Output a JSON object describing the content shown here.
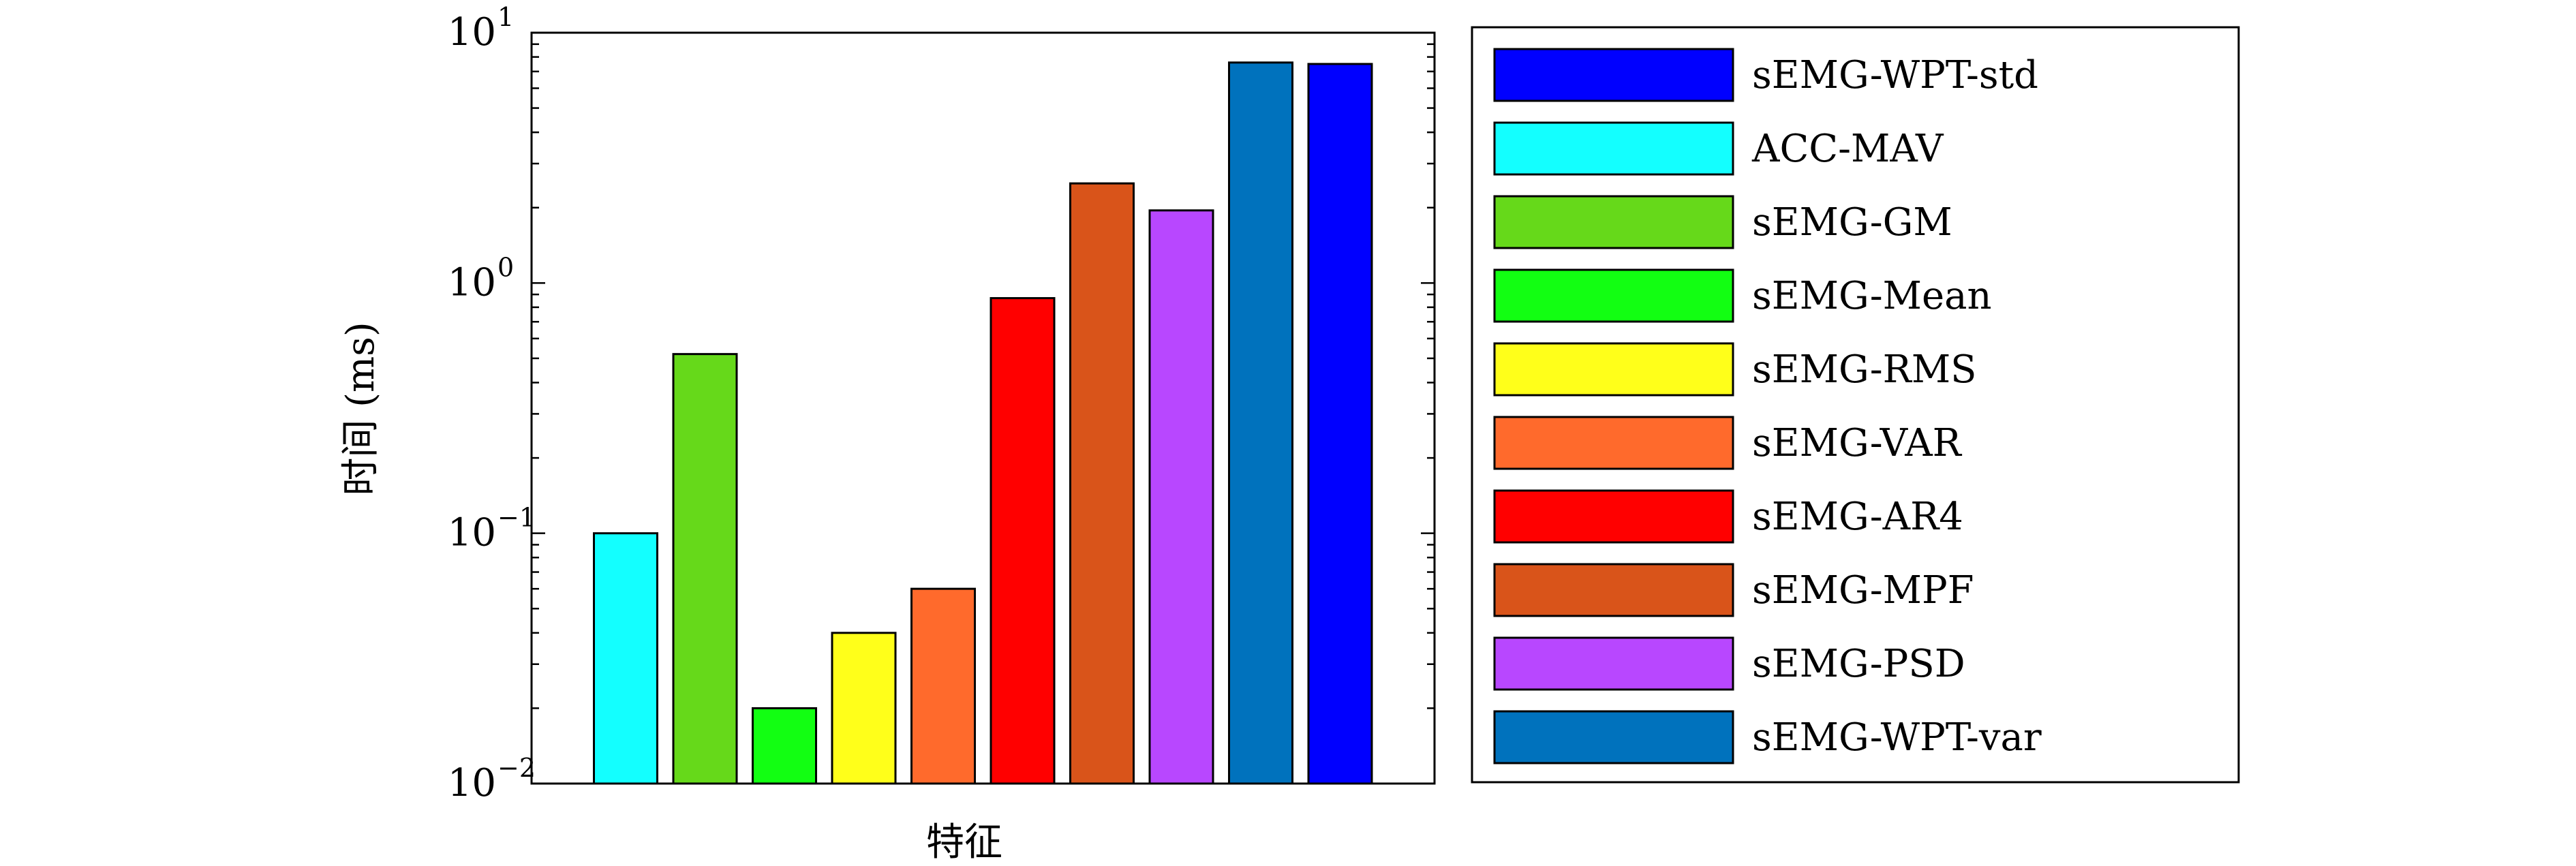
{
  "chart_data": {
    "type": "bar",
    "xlabel": "特征",
    "ylabel": "时间 (ms)",
    "yscale": "log",
    "ylim": [
      0.01,
      10
    ],
    "yticks": [
      {
        "base": "10",
        "exp": "1",
        "value": 10
      },
      {
        "base": "10",
        "exp": "0",
        "value": 1
      },
      {
        "base": "10",
        "exp": "−1",
        "value": 0.1
      },
      {
        "base": "10",
        "exp": "−2",
        "value": 0.01
      }
    ],
    "legend_position": "right, outside plot",
    "bars": [
      {
        "name": "ACC-MAV",
        "value": 0.1,
        "color": "#13FFFF"
      },
      {
        "name": "sEMG-GM",
        "value": 0.52,
        "color": "#66D91A"
      },
      {
        "name": "sEMG-Mean",
        "value": 0.02,
        "color": "#12FF12"
      },
      {
        "name": "sEMG-RMS",
        "value": 0.04,
        "color": "#FFFF1A"
      },
      {
        "name": "sEMG-VAR",
        "value": 0.06,
        "color": "#FF6A2C"
      },
      {
        "name": "sEMG-AR4",
        "value": 0.87,
        "color": "#FF0000"
      },
      {
        "name": "sEMG-MPF",
        "value": 2.5,
        "color": "#D9541A"
      },
      {
        "name": "sEMG-PSD",
        "value": 1.95,
        "color": "#B847FF"
      },
      {
        "name": "sEMG-WPT-var",
        "value": 7.6,
        "color": "#0072BD"
      },
      {
        "name": "sEMG-WPT-std",
        "value": 7.5,
        "color": "#0000FF"
      }
    ],
    "legend": [
      {
        "label": "sEMG-WPT-std",
        "color": "#0000FF"
      },
      {
        "label": "ACC-MAV",
        "color": "#13FFFF"
      },
      {
        "label": "sEMG-GM",
        "color": "#66D91A"
      },
      {
        "label": "sEMG-Mean",
        "color": "#12FF12"
      },
      {
        "label": "sEMG-RMS",
        "color": "#FFFF1A"
      },
      {
        "label": "sEMG-VAR",
        "color": "#FF6A2C"
      },
      {
        "label": "sEMG-AR4",
        "color": "#FF0000"
      },
      {
        "label": "sEMG-MPF",
        "color": "#D9541A"
      },
      {
        "label": "sEMG-PSD",
        "color": "#B847FF"
      },
      {
        "label": "sEMG-WPT-var",
        "color": "#0072BD"
      }
    ]
  }
}
